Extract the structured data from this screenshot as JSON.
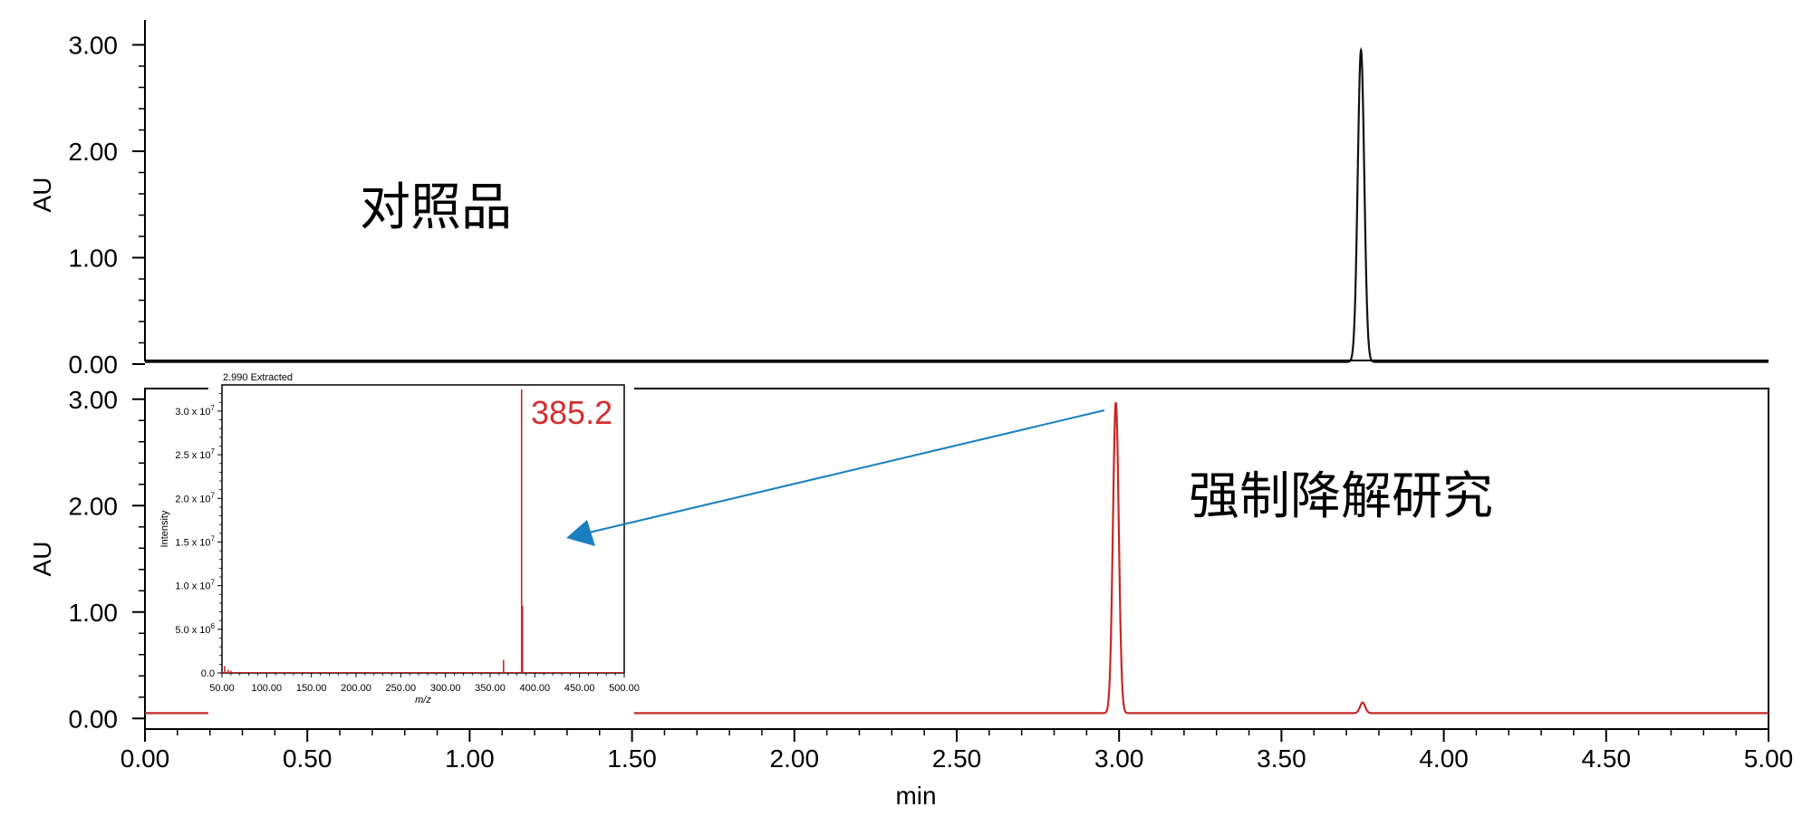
{
  "chart_data": [
    {
      "type": "line",
      "panel": "top",
      "annotation": "对照品",
      "ylabel": "AU",
      "ylim": [
        0,
        3.2
      ],
      "yticks": [
        "0.00",
        "1.00",
        "2.00",
        "3.00"
      ],
      "xlim": [
        0,
        5
      ],
      "color": "#111111",
      "baseline": 0.02,
      "peaks": [
        {
          "x": 3.745,
          "y": 2.93,
          "width": 0.01
        }
      ]
    },
    {
      "type": "line",
      "panel": "bottom",
      "annotation": "强制降解研究",
      "ylabel": "AU",
      "xlabel": "min",
      "ylim": [
        -0.1,
        3.1
      ],
      "yticks": [
        "0.00",
        "1.00",
        "2.00",
        "3.00"
      ],
      "xlim": [
        0,
        5
      ],
      "xticks": [
        "0.00",
        "0.50",
        "1.00",
        "1.50",
        "2.00",
        "2.50",
        "3.00",
        "3.50",
        "4.00",
        "4.50",
        "5.00"
      ],
      "color": "#c62828",
      "baseline": 0.05,
      "peaks": [
        {
          "x": 2.99,
          "y": 2.92,
          "width": 0.009
        },
        {
          "x": 3.75,
          "y": 0.1,
          "width": 0.008
        }
      ]
    },
    {
      "type": "line",
      "panel": "inset-mass-spectrum",
      "title": "2.990 Extracted",
      "xlabel": "m/z",
      "ylabel": "Intensity",
      "xlim": [
        50,
        500
      ],
      "xticks": [
        "50.00",
        "100.00",
        "150.00",
        "200.00",
        "250.00",
        "300.00",
        "350.00",
        "400.00",
        "450.00",
        "500.00"
      ],
      "ylim": [
        0,
        33000000
      ],
      "yticks": [
        "0.0",
        "5.0 x 10",
        "1.0 x 10",
        "1.5 x 10",
        "2.0 x 10",
        "2.5 x 10",
        "3.0 x 10"
      ],
      "ytick_exponents": [
        "",
        "6",
        "7",
        "7",
        "7",
        "7",
        "7"
      ],
      "color": "#c62828",
      "peak_label": "385.2",
      "peak_label_color": "#d32f2f",
      "sticks": [
        {
          "x": 385.2,
          "y": 32500000
        },
        {
          "x": 386.2,
          "y": 7700000
        },
        {
          "x": 365.0,
          "y": 1500000
        },
        {
          "x": 53.0,
          "y": 800000
        },
        {
          "x": 57.0,
          "y": 350000
        },
        {
          "x": 60.0,
          "y": 250000
        }
      ],
      "arrow_color": "#1a7fbf"
    }
  ]
}
